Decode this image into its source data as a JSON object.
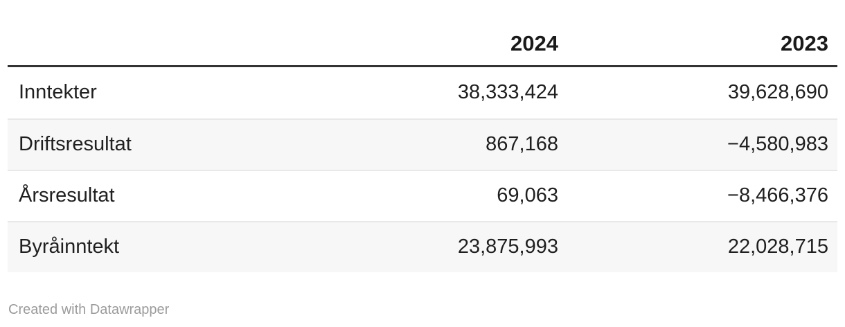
{
  "table": {
    "columns": [
      {
        "label": ""
      },
      {
        "label": "2024"
      },
      {
        "label": "2023"
      }
    ],
    "rows": [
      {
        "label": "Inntekter",
        "y2024": "38,333,424",
        "y2023": "39,628,690"
      },
      {
        "label": "Driftsresultat",
        "y2024": "867,168",
        "y2023": "−4,580,983"
      },
      {
        "label": "Årsresultat",
        "y2024": "69,063",
        "y2023": "−8,466,376"
      },
      {
        "label": "Byråinntekt",
        "y2024": "23,875,993",
        "y2023": "22,028,715"
      }
    ]
  },
  "footer": {
    "credit": "Created with Datawrapper"
  },
  "colors": {
    "header_border": "#333333",
    "row_stripe": "#f7f7f7",
    "row_separator": "#e8e8e8",
    "text": "#1f1f1f",
    "header_text": "#1a1a1a",
    "credit_text": "#9b9b9b",
    "background": "#ffffff"
  },
  "chart_data": {
    "type": "table",
    "title": "",
    "categories": [
      "Inntekter",
      "Driftsresultat",
      "Årsresultat",
      "Byråinntekt"
    ],
    "series": [
      {
        "name": "2024",
        "values": [
          38333424,
          867168,
          69063,
          23875993
        ]
      },
      {
        "name": "2023",
        "values": [
          39628690,
          -4580983,
          -8466376,
          22028715
        ]
      }
    ],
    "legend_position": "none",
    "grid": "row-stripes",
    "credit": "Created with Datawrapper"
  }
}
